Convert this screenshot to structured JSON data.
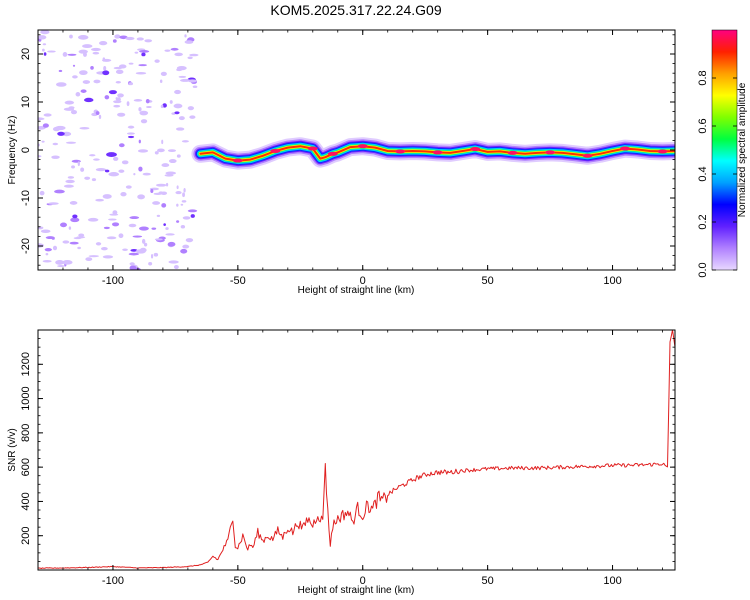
{
  "title": "KOM5.2025.317.22.24.G09",
  "chart_data": [
    {
      "type": "heatmap",
      "xlabel": "Height of straight line (km)",
      "ylabel": "Frequency (Hz)",
      "xlim": [
        -130,
        125
      ],
      "ylim": [
        -25,
        25
      ],
      "xticks": [
        -100,
        -50,
        0,
        50,
        100
      ],
      "yticks": [
        -20,
        -10,
        0,
        10,
        20
      ],
      "xtick_labels": [
        "-100",
        "-50",
        "0",
        "50",
        "100"
      ],
      "ytick_labels": [
        "-20",
        "-10",
        "0",
        "10",
        "20"
      ],
      "colorbar": {
        "label": "Normalized spectral amplitude",
        "range": [
          0,
          1
        ],
        "ticks": [
          0.0,
          0.2,
          0.4,
          0.6,
          0.8
        ],
        "tick_labels": [
          "0.0",
          "0.2",
          "0.4",
          "0.6",
          "0.8"
        ],
        "colors": [
          "#e8d8ff",
          "#b080ff",
          "#6020ff",
          "#0000ff",
          "#00a0ff",
          "#00ffff",
          "#00ff40",
          "#80ff00",
          "#ffff00",
          "#ffa000",
          "#ff2000",
          "#ff0080"
        ]
      },
      "ridge": {
        "x": [
          -65,
          -60,
          -55,
          -50,
          -45,
          -40,
          -35,
          -30,
          -25,
          -20,
          -17,
          -15,
          -12,
          -10,
          -5,
          0,
          5,
          10,
          15,
          20,
          25,
          30,
          35,
          40,
          45,
          50,
          55,
          60,
          65,
          70,
          75,
          80,
          85,
          90,
          95,
          100,
          105,
          110,
          115,
          120,
          125
        ],
        "y": [
          -0.8,
          -0.5,
          -1.8,
          -2.2,
          -2.0,
          -1.2,
          -0.2,
          0.5,
          0.8,
          0.3,
          -1.8,
          -1.5,
          -0.8,
          -0.5,
          0.6,
          0.8,
          0.5,
          -0.2,
          -0.3,
          -0.2,
          -0.3,
          -0.5,
          -0.6,
          -0.2,
          0.2,
          -0.4,
          -0.3,
          -0.6,
          -0.8,
          -0.6,
          -0.5,
          -0.6,
          -0.9,
          -1.2,
          -0.8,
          -0.2,
          0.3,
          0.1,
          -0.2,
          -0.3,
          -0.2
        ]
      },
      "noise_region_x": [
        -130,
        -67
      ]
    },
    {
      "type": "line",
      "xlabel": "Height of straight line (km)",
      "ylabel": "SNR (v/v)",
      "xlim": [
        -130,
        125
      ],
      "ylim": [
        0,
        1400
      ],
      "xticks": [
        -100,
        -50,
        0,
        50,
        100
      ],
      "yticks": [
        200,
        400,
        600,
        800,
        1000,
        1200
      ],
      "xtick_labels": [
        "-100",
        "-50",
        "0",
        "50",
        "100"
      ],
      "ytick_labels": [
        "200",
        "400",
        "600",
        "800",
        "1000",
        "1200"
      ],
      "color": "#e02020",
      "series": [
        {
          "x": [
            -130,
            -120,
            -110,
            -100,
            -90,
            -80,
            -70,
            -65,
            -62,
            -60,
            -58,
            -56,
            -54,
            -53,
            -52,
            -51,
            -50,
            -48,
            -46,
            -45,
            -44,
            -42,
            -40,
            -38,
            -36,
            -34,
            -32,
            -30,
            -28,
            -26,
            -24,
            -22,
            -20,
            -18,
            -16,
            -15,
            -14,
            -13,
            -12,
            -10,
            -8,
            -6,
            -4,
            -2,
            0,
            2,
            4,
            6,
            8,
            10,
            14,
            18,
            22,
            26,
            30,
            35,
            40,
            50,
            60,
            70,
            80,
            90,
            100,
            110,
            115,
            120,
            122,
            123,
            124,
            125
          ],
          "y": [
            10,
            12,
            15,
            20,
            12,
            14,
            20,
            30,
            45,
            80,
            60,
            120,
            170,
            240,
            320,
            140,
            130,
            200,
            120,
            150,
            130,
            220,
            170,
            200,
            180,
            230,
            190,
            250,
            220,
            280,
            240,
            300,
            260,
            330,
            280,
            640,
            330,
            150,
            260,
            300,
            320,
            340,
            280,
            360,
            320,
            380,
            350,
            420,
            400,
            440,
            480,
            510,
            540,
            560,
            570,
            570,
            580,
            590,
            595,
            595,
            600,
            605,
            610,
            612,
            615,
            620,
            600,
            1330,
            1400,
            1300
          ]
        }
      ]
    }
  ]
}
